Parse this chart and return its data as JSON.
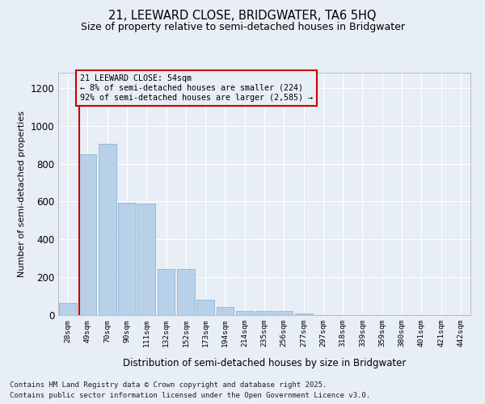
{
  "title_line1": "21, LEEWARD CLOSE, BRIDGWATER, TA6 5HQ",
  "title_line2": "Size of property relative to semi-detached houses in Bridgwater",
  "xlabel": "Distribution of semi-detached houses by size in Bridgwater",
  "ylabel": "Number of semi-detached properties",
  "categories": [
    "28sqm",
    "49sqm",
    "70sqm",
    "90sqm",
    "111sqm",
    "132sqm",
    "152sqm",
    "173sqm",
    "194sqm",
    "214sqm",
    "235sqm",
    "256sqm",
    "277sqm",
    "297sqm",
    "318sqm",
    "339sqm",
    "359sqm",
    "380sqm",
    "401sqm",
    "421sqm",
    "442sqm"
  ],
  "values": [
    65,
    850,
    905,
    595,
    590,
    245,
    245,
    80,
    42,
    22,
    22,
    20,
    10,
    0,
    0,
    0,
    0,
    0,
    0,
    0,
    0
  ],
  "bar_color": "#b8d0e8",
  "bar_edge_color": "#7aafd4",
  "vline_color": "#cc0000",
  "annotation_text": "21 LEEWARD CLOSE: 54sqm\n← 8% of semi-detached houses are smaller (224)\n92% of semi-detached houses are larger (2,585) →",
  "annotation_box_edgecolor": "#cc0000",
  "annotation_text_color": "#000000",
  "ylim": [
    0,
    1280
  ],
  "yticks": [
    0,
    200,
    400,
    600,
    800,
    1000,
    1200
  ],
  "background_color": "#e8eef5",
  "grid_color": "#ffffff",
  "footer_line1": "Contains HM Land Registry data © Crown copyright and database right 2025.",
  "footer_line2": "Contains public sector information licensed under the Open Government Licence v3.0."
}
